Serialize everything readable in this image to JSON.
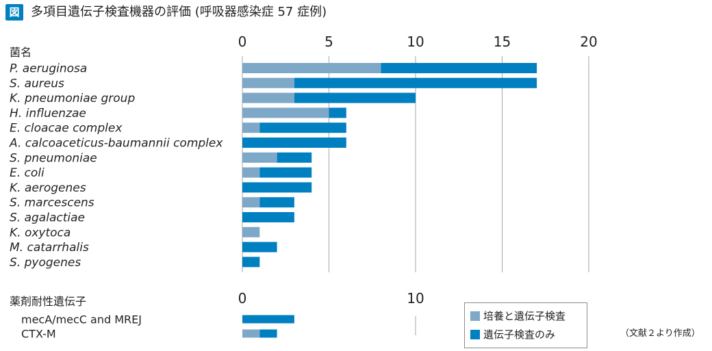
{
  "header": {
    "figure_label": "図",
    "title": "多項目遺伝子検査機器の評価 (呼吸器感染症 57 症例)"
  },
  "colors": {
    "culture_and_genetic": "#7ea8c8",
    "genetic_only": "#0080c0",
    "grid": "#a6a6a6",
    "accent": "#0080c0"
  },
  "chart_data": [
    {
      "type": "bar",
      "orientation": "horizontal",
      "stacked": true,
      "category_header": "菌名",
      "categories": [
        "P. aeruginosa",
        "S. aureus",
        "K. pneumoniae group",
        "H. influenzae",
        "E. cloacae complex",
        "A. calcoaceticus-baumannii complex",
        "S. pneumoniae",
        "E. coli",
        "K. aerogenes",
        "S. marcescens",
        "S. agalactiae",
        "K. oxytoca",
        "M. catarrhalis",
        "S. pyogenes"
      ],
      "series": [
        {
          "name": "培養と遺伝子検査",
          "values": [
            8,
            3,
            3,
            5,
            1,
            0,
            2,
            1,
            0,
            1,
            0,
            1,
            0,
            0
          ]
        },
        {
          "name": "遺伝子検査のみ",
          "values": [
            9,
            14,
            7,
            1,
            5,
            6,
            2,
            3,
            4,
            2,
            3,
            0,
            2,
            1
          ]
        }
      ],
      "xlim": [
        0,
        20
      ],
      "xticks": [
        "0",
        "5",
        "10",
        "15",
        "20"
      ],
      "axis_position": "top",
      "grid": true
    },
    {
      "type": "bar",
      "orientation": "horizontal",
      "stacked": true,
      "category_header": "薬剤耐性遺伝子",
      "categories": [
        "mecA/mecC and MREJ",
        "CTX-M"
      ],
      "series": [
        {
          "name": "培養と遺伝子検査",
          "values": [
            0,
            1
          ]
        },
        {
          "name": "遺伝子検査のみ",
          "values": [
            3,
            1
          ]
        }
      ],
      "xlim": [
        0,
        20
      ],
      "xticks": [
        "0",
        "10"
      ],
      "axis_position": "top",
      "grid": true
    }
  ],
  "legend": {
    "items": [
      {
        "label": "培養と遺伝子検査",
        "color": "#7ea8c8"
      },
      {
        "label": "遺伝子検査のみ",
        "color": "#0080c0"
      }
    ]
  },
  "source_note": "（文献２より作成）"
}
